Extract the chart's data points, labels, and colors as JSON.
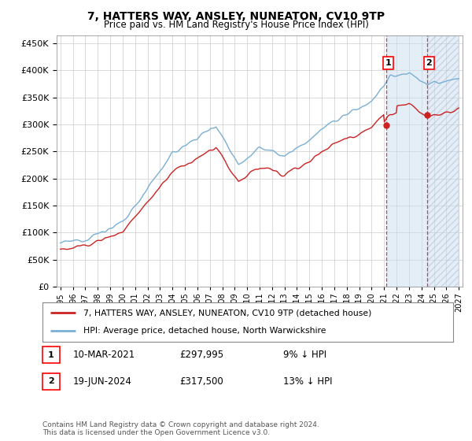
{
  "title": "7, HATTERS WAY, ANSLEY, NUNEATON, CV10 9TP",
  "subtitle": "Price paid vs. HM Land Registry's House Price Index (HPI)",
  "ytick_vals": [
    0,
    50000,
    100000,
    150000,
    200000,
    250000,
    300000,
    350000,
    400000,
    450000
  ],
  "ylim": [
    0,
    465000
  ],
  "xlim_start": 1994.7,
  "xlim_end": 2027.3,
  "hpi_color": "#7aafd4",
  "price_color": "#cc2222",
  "shade_color": "#c8dff0",
  "sale1_x": 2021.19,
  "sale1_price": 297995,
  "sale1_date": "10-MAR-2021",
  "sale1_label": "1",
  "sale2_x": 2024.46,
  "sale2_price": 317500,
  "sale2_date": "19-JUN-2024",
  "sale2_label": "2",
  "legend_red": "7, HATTERS WAY, ANSLEY, NUNEATON, CV10 9TP (detached house)",
  "legend_blue": "HPI: Average price, detached house, North Warwickshire",
  "footnote": "Contains HM Land Registry data © Crown copyright and database right 2024.\nThis data is licensed under the Open Government Licence v3.0.",
  "background_color": "#ffffff",
  "grid_color": "#cccccc",
  "xticks": [
    1995,
    1996,
    1997,
    1998,
    1999,
    2000,
    2001,
    2002,
    2003,
    2004,
    2005,
    2006,
    2007,
    2008,
    2009,
    2010,
    2011,
    2012,
    2013,
    2014,
    2015,
    2016,
    2017,
    2018,
    2019,
    2020,
    2021,
    2022,
    2023,
    2024,
    2025,
    2026,
    2027
  ]
}
